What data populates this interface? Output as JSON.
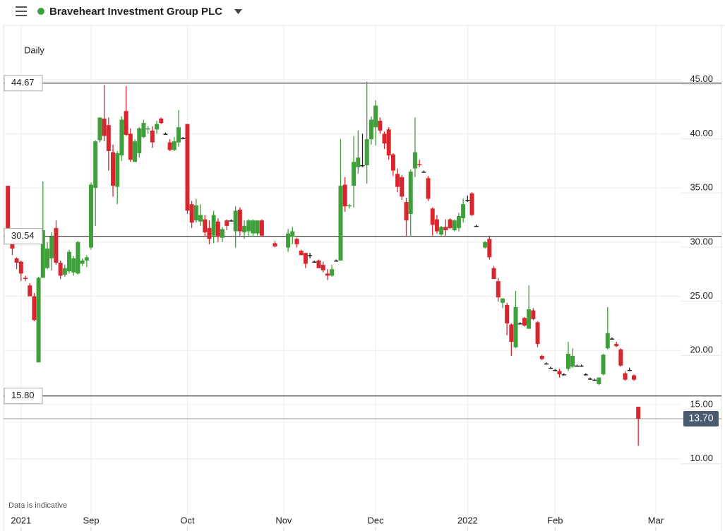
{
  "chart_data": {
    "type": "candlestick",
    "title": "Braveheart Investment Group PLC",
    "interval": "Daily",
    "note": "Data is indicative",
    "up_color": "#3f9f3a",
    "down_color": "#d8262e",
    "neutral_color": "#222222",
    "grid": true,
    "xlim": [
      -20,
      144
    ],
    "xticks": [
      {
        "value": -16,
        "label": "2021"
      },
      {
        "value": 0,
        "label": "Sep"
      },
      {
        "value": 22,
        "label": "Oct"
      },
      {
        "value": 44,
        "label": "Nov"
      },
      {
        "value": 65,
        "label": "Dec"
      },
      {
        "value": 86,
        "label": "2022"
      },
      {
        "value": 106,
        "label": "Feb"
      },
      {
        "value": 129,
        "label": "Mar"
      }
    ],
    "ylim": [
      4.9,
      50
    ],
    "yticks": [
      {
        "value": 10,
        "label": "10.00"
      },
      {
        "value": 15,
        "label": "15.00"
      },
      {
        "value": 20,
        "label": "20.00"
      },
      {
        "value": 25,
        "label": "25.00"
      },
      {
        "value": 30,
        "label": "30.00"
      },
      {
        "value": 35,
        "label": "35.00"
      },
      {
        "value": 40,
        "label": "40.00"
      },
      {
        "value": 45,
        "label": "45.00"
      }
    ],
    "levels": [
      44.67,
      30.54,
      {
        "value": 15.8,
        "label": "15.80"
      }
    ],
    "last_price": {
      "value": 13.7,
      "label": "13.70"
    },
    "x": [
      -19,
      -18,
      -17,
      -16,
      -15,
      -14,
      -13,
      -12,
      -11,
      -10,
      -9,
      -8,
      -7,
      -6,
      -5,
      -4,
      -3,
      -2,
      -1,
      0,
      1,
      2,
      3,
      4,
      5,
      6,
      7,
      8,
      9,
      10,
      11,
      12,
      13,
      14,
      15,
      16,
      17,
      18,
      19,
      20,
      21,
      22,
      23,
      24,
      25,
      26,
      27,
      28,
      29,
      30,
      31,
      32,
      33,
      34,
      35,
      36,
      37,
      38,
      39,
      42,
      45,
      46,
      47,
      48,
      49,
      50,
      51,
      52,
      53,
      54,
      55,
      56,
      57,
      58,
      59,
      60,
      61,
      62,
      63,
      64,
      65,
      66,
      67,
      68,
      69,
      70,
      71,
      72,
      73,
      74,
      75,
      76,
      77,
      78,
      79,
      80,
      81,
      82,
      83,
      84,
      85,
      86,
      87,
      88,
      90,
      91,
      92,
      93,
      94,
      95,
      96,
      97,
      98,
      99,
      100,
      101,
      102,
      103,
      104,
      105,
      106,
      107,
      108,
      109,
      110,
      111,
      112,
      113,
      114,
      115,
      116,
      117,
      118,
      119,
      120,
      121,
      122,
      123,
      124,
      125
    ],
    "open": [
      35.2,
      31,
      28.5,
      28.2,
      26.7,
      26,
      25,
      18.9,
      26.7,
      27.6,
      28.5,
      31.3,
      28.1,
      27,
      27.3,
      27.2,
      27.1,
      28,
      28.3,
      29.5,
      35,
      39.4,
      41.4,
      40.8,
      38.3,
      35.1,
      38,
      42.1,
      40,
      37.4,
      38.2,
      39.7,
      40.4,
      40.3,
      40.4,
      41.4,
      40,
      39.2,
      38.5,
      39.2,
      39.6,
      40.9,
      33.5,
      32,
      31.9,
      32.1,
      31.3,
      30.6,
      31.9,
      30.4,
      32,
      32,
      31,
      33,
      30.9,
      31,
      30.8,
      30.8,
      32,
      29.9,
      29.5,
      30.5,
      30.3,
      29.2,
      29,
      28.8,
      28.2,
      28.3,
      27.9,
      27.1,
      26.9,
      28.3,
      28.3,
      35.3,
      33.3,
      35.2,
      36.9,
      37.1,
      37.1,
      39.5,
      40.6,
      41.2,
      40,
      40.4,
      38.1,
      36.3,
      36,
      33.7,
      32.6,
      36.8,
      37.2,
      36.5,
      35.9,
      33.1,
      32.1,
      30.7,
      31.4,
      32.1,
      31.1,
      31.3,
      32.2,
      33.9,
      34.5,
      31.5,
      29.5,
      30.3,
      27.6,
      26.4,
      24.4,
      24.2,
      22.4,
      20.3,
      22.5,
      23,
      22,
      23.7,
      22.6,
      19.5,
      18.8,
      18.4,
      18.2,
      18.1,
      17.8,
      18.3,
      18.5,
      18.6,
      18.6,
      17.8,
      17.4,
      17.3,
      16.9,
      17.8,
      20.2,
      21.1,
      20.6,
      20.1,
      17.9,
      18.2,
      17.7,
      14.8
    ],
    "high": [
      35.2,
      31.3,
      28.6,
      28.3,
      26.9,
      26.2,
      25.3,
      26.8,
      35.6,
      30,
      30.9,
      32,
      28.3,
      27.9,
      29.3,
      28.7,
      30.1,
      28.5,
      28.8,
      35.5,
      39.4,
      41.5,
      44.5,
      41.5,
      39,
      38.4,
      41.6,
      44.4,
      40.5,
      39.5,
      40.6,
      41.3,
      40.7,
      40.7,
      41.2,
      41.5,
      40.1,
      39.5,
      39.7,
      42.2,
      39.7,
      40.9,
      33.8,
      34,
      33.5,
      32.5,
      32,
      32.9,
      32.2,
      31.4,
      32.1,
      32.1,
      33.3,
      33.2,
      32,
      32.1,
      32.1,
      32,
      32.1,
      30.1,
      31.2,
      31.4,
      30.4,
      29.3,
      29,
      29,
      28.3,
      28.4,
      28.2,
      27.5,
      27.9,
      28.4,
      39.5,
      36,
      33.5,
      39.8,
      40.3,
      40,
      44.8,
      41.6,
      43.1,
      41.5,
      40.2,
      40.6,
      38.2,
      36.8,
      36.2,
      34.1,
      36.7,
      41.5,
      37.6,
      36.6,
      36.1,
      33.2,
      32.5,
      31.5,
      32.1,
      32.2,
      32.1,
      32.7,
      34,
      34.3,
      34.6,
      31.6,
      30.1,
      30.6,
      27.8,
      26.7,
      24.8,
      24.4,
      22.5,
      25.5,
      22.6,
      23.1,
      26,
      23.9,
      22.7,
      19.6,
      18.9,
      18.5,
      18.3,
      18.3,
      17.9,
      20.8,
      20.2,
      18.7,
      18.7,
      17.9,
      17.5,
      17.4,
      17.5,
      19.7,
      24,
      21.2,
      20.8,
      20.2,
      18.1,
      18.4,
      17.8,
      14.8
    ],
    "low": [
      31.2,
      28.8,
      27.5,
      26.4,
      26.4,
      25,
      22.7,
      18.9,
      26.7,
      27.5,
      27.4,
      27.9,
      26.6,
      26.8,
      27.1,
      26.9,
      27,
      27.8,
      27.7,
      29.3,
      31.5,
      39.2,
      39.3,
      36.6,
      34.2,
      33.5,
      37.5,
      39.8,
      37.4,
      37.4,
      37.8,
      39.6,
      40,
      38.7,
      40,
      40.9,
      39.9,
      38.4,
      38.4,
      38.8,
      39.5,
      32.6,
      31.3,
      31.8,
      31.5,
      30.5,
      29.8,
      29.9,
      30,
      30,
      31.1,
      31.9,
      29.5,
      30.6,
      30.3,
      30.5,
      30.5,
      30.6,
      30.5,
      29.5,
      29.1,
      29.8,
      29.5,
      28.8,
      27.6,
      28.5,
      28.1,
      27.6,
      27.2,
      26.5,
      26.8,
      28.2,
      28.3,
      32.8,
      33.1,
      33.2,
      36.3,
      36.9,
      35.4,
      39,
      38.9,
      40,
      38.6,
      37.6,
      36.1,
      34.6,
      33.9,
      30.5,
      30.5,
      36,
      36.9,
      36.4,
      33.8,
      30.6,
      30.8,
      30.5,
      30.6,
      31.2,
      31,
      31,
      31.8,
      33.7,
      32.4,
      31.4,
      29.4,
      28.4,
      26.6,
      24.5,
      23.9,
      21.4,
      19.5,
      20.2,
      22.4,
      22.2,
      22,
      22.8,
      20.3,
      19.1,
      18.7,
      18.3,
      18.1,
      17.5,
      17.7,
      18.1,
      18.4,
      18.5,
      18.5,
      17.7,
      17.3,
      17.2,
      16.8,
      17.7,
      20.1,
      21,
      20.3,
      18.5,
      17.2,
      18.1,
      17.2,
      11.2
    ],
    "close": [
      31.3,
      29.4,
      28.1,
      27.1,
      26.6,
      25,
      22.8,
      26.7,
      31.1,
      29.4,
      30.5,
      28.1,
      26.9,
      27.6,
      29.1,
      28.5,
      30,
      28.3,
      28.6,
      35.3,
      39.3,
      41.5,
      39.8,
      38.4,
      35.2,
      38.2,
      41.3,
      39.9,
      37.6,
      39.3,
      40.5,
      41,
      40.5,
      39.2,
      40.9,
      41,
      40,
      38.5,
      39.3,
      40.6,
      39.6,
      32.9,
      31.8,
      33.4,
      32.5,
      30.9,
      30.3,
      32.5,
      30.5,
      31.2,
      31.5,
      32,
      32.9,
      31,
      31.5,
      32,
      32,
      32,
      30.6,
      29.6,
      30.8,
      31,
      29.8,
      28.8,
      28,
      28.8,
      28.2,
      27.6,
      27.4,
      26.9,
      27.5,
      28.3,
      35.2,
      33.3,
      33.4,
      37.4,
      37.8,
      37.1,
      39.5,
      41.3,
      42.6,
      40.3,
      39.1,
      38,
      36.6,
      35.1,
      34.2,
      32,
      36.5,
      38.3,
      37.1,
      36.5,
      34,
      31.6,
      31,
      31.4,
      31.1,
      31.3,
      32,
      32.4,
      33.5,
      33.9,
      32.5,
      31.5,
      30,
      28.6,
      26.6,
      24.9,
      24.8,
      22.5,
      20.8,
      24,
      22.5,
      22.3,
      23.8,
      22.9,
      20.6,
      19.2,
      18.8,
      18.4,
      18.2,
      17.8,
      17.8,
      19.7,
      19.5,
      18.6,
      18.6,
      17.8,
      17.4,
      17.3,
      17.5,
      19.6,
      21.6,
      21.1,
      20.4,
      18.6,
      17.3,
      18.2,
      17.3,
      13.7
    ]
  }
}
